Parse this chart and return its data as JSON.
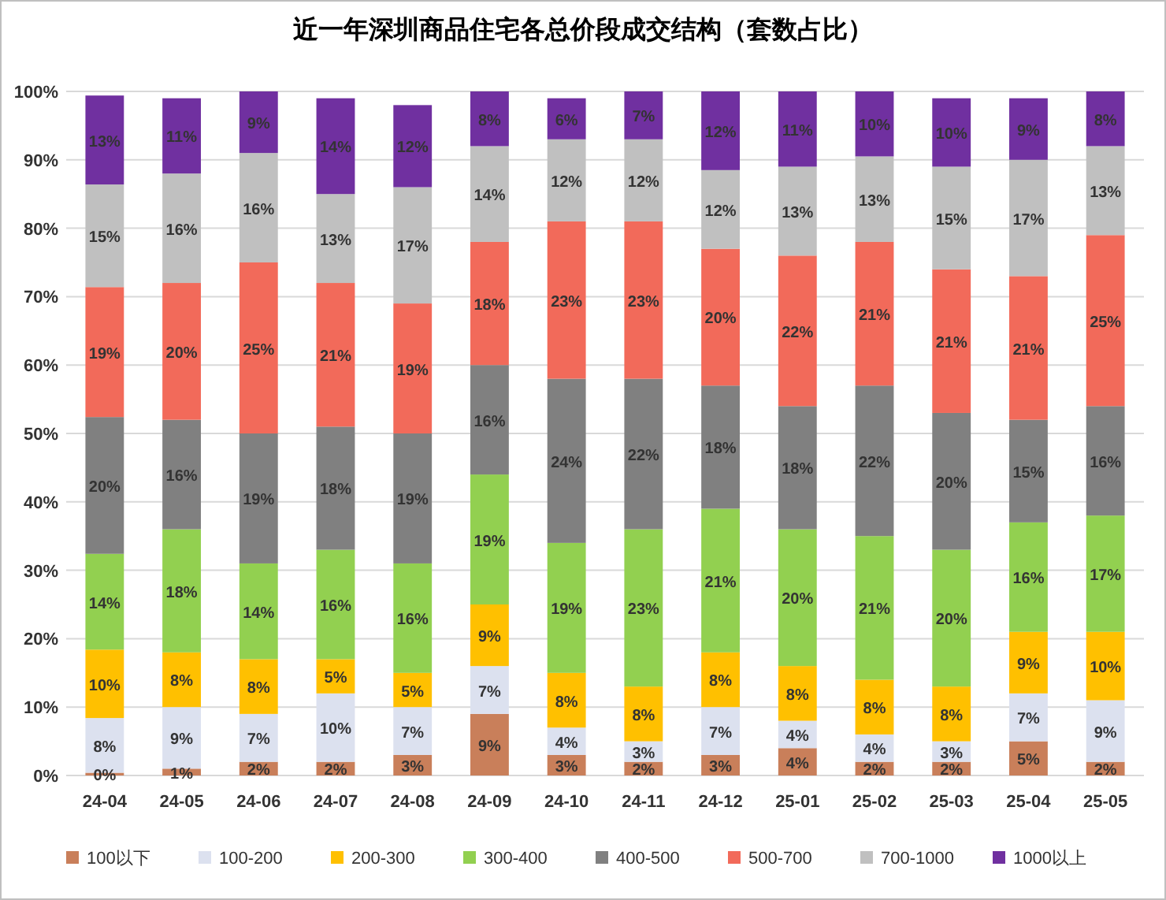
{
  "chart_data": {
    "type": "bar",
    "title": "近一年深圳商品住宅各总价段成交结构（套数占比）",
    "stacked": true,
    "categories": [
      "24-04",
      "24-05",
      "24-06",
      "24-07",
      "24-08",
      "24-09",
      "24-10",
      "24-11",
      "24-12",
      "25-01",
      "25-02",
      "25-03",
      "25-04",
      "25-05"
    ],
    "series": [
      {
        "name": "100以下",
        "color": "#c97f5a",
        "values": [
          0.4,
          1,
          2,
          2,
          3,
          9,
          3,
          2,
          3,
          4,
          2,
          2,
          5,
          2
        ],
        "value_labels": [
          "0%",
          "1%",
          "2%",
          "2%",
          "3%",
          "9%",
          "3%",
          "2%",
          "3%",
          "4%",
          "2%",
          "2%",
          "5%",
          "2%"
        ]
      },
      {
        "name": "100-200",
        "color": "#dce1ef",
        "values": [
          8,
          9,
          7,
          10,
          7,
          7,
          4,
          3,
          7,
          4,
          4,
          3,
          7,
          9
        ],
        "value_labels": [
          "8%",
          "9%",
          "7%",
          "10%",
          "7%",
          "7%",
          "4%",
          "3%",
          "7%",
          "4%",
          "4%",
          "3%",
          "7%",
          "9%"
        ]
      },
      {
        "name": "200-300",
        "color": "#ffc000",
        "values": [
          10,
          8,
          8,
          5,
          5,
          9,
          8,
          8,
          8,
          8,
          8,
          8,
          9,
          10
        ],
        "value_labels": [
          "10%",
          "8%",
          "8%",
          "5%",
          "5%",
          "9%",
          "8%",
          "8%",
          "8%",
          "8%",
          "8%",
          "8%",
          "9%",
          "10%"
        ]
      },
      {
        "name": "300-400",
        "color": "#92d050",
        "values": [
          14,
          18,
          14,
          16,
          16,
          19,
          19,
          23,
          21,
          20,
          21,
          20,
          16,
          17
        ],
        "value_labels": [
          "14%",
          "18%",
          "14%",
          "16%",
          "16%",
          "19%",
          "19%",
          "23%",
          "21%",
          "20%",
          "21%",
          "20%",
          "16%",
          "17%"
        ]
      },
      {
        "name": "400-500",
        "color": "#808080",
        "values": [
          20,
          16,
          19,
          18,
          19,
          16,
          24,
          22,
          18,
          18,
          22,
          20,
          15,
          16
        ],
        "value_labels": [
          "20%",
          "16%",
          "19%",
          "18%",
          "19%",
          "16%",
          "24%",
          "22%",
          "18%",
          "18%",
          "22%",
          "20%",
          "15%",
          "16%"
        ]
      },
      {
        "name": "500-700",
        "color": "#f26a5a",
        "values": [
          19,
          20,
          25,
          21,
          19,
          18,
          23,
          23,
          20,
          22,
          21,
          21,
          21,
          25
        ],
        "value_labels": [
          "19%",
          "20%",
          "25%",
          "21%",
          "19%",
          "18%",
          "23%",
          "23%",
          "20%",
          "22%",
          "21%",
          "21%",
          "21%",
          "25%"
        ]
      },
      {
        "name": "700-1000",
        "color": "#c0c0c0",
        "values": [
          15,
          16,
          16,
          13,
          17,
          14,
          12,
          12,
          11.5,
          13,
          12.5,
          15,
          17,
          13
        ],
        "value_labels": [
          "15%",
          "16%",
          "16%",
          "13%",
          "17%",
          "14%",
          "12%",
          "12%",
          "12%",
          "13%",
          "13%",
          "15%",
          "17%",
          "13%"
        ]
      },
      {
        "name": "1000以上",
        "color": "#7030a0",
        "values": [
          13,
          11,
          9,
          14,
          12,
          8,
          6,
          7,
          11.5,
          11,
          9.5,
          10,
          9,
          8
        ],
        "value_labels": [
          "13%",
          "11%",
          "9%",
          "14%",
          "12%",
          "8%",
          "6%",
          "7%",
          "12%",
          "11%",
          "10%",
          "10%",
          "9%",
          "8%"
        ]
      }
    ],
    "ylim": [
      0,
      100
    ],
    "yticks": [
      {
        "value": 0,
        "label": "0%"
      },
      {
        "value": 10,
        "label": "10%"
      },
      {
        "value": 20,
        "label": "20%"
      },
      {
        "value": 30,
        "label": "30%"
      },
      {
        "value": 40,
        "label": "40%"
      },
      {
        "value": 50,
        "label": "50%"
      },
      {
        "value": 60,
        "label": "60%"
      },
      {
        "value": 70,
        "label": "70%"
      },
      {
        "value": 80,
        "label": "80%"
      },
      {
        "value": 90,
        "label": "90%"
      },
      {
        "value": 100,
        "label": "100%"
      }
    ],
    "grid": "y",
    "legend": "bottom"
  }
}
